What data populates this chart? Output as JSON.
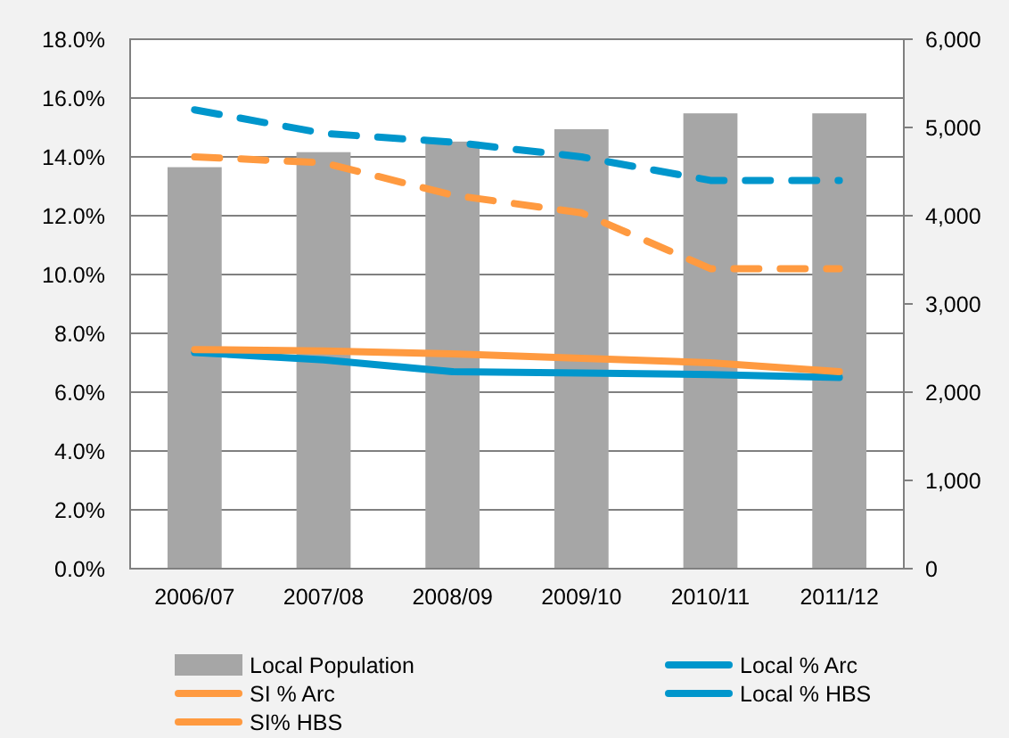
{
  "chart_data": {
    "type": "bar",
    "categories": [
      "2006/07",
      "2007/08",
      "2008/09",
      "2009/10",
      "2010/11",
      "2011/12"
    ],
    "series": [
      {
        "name": "Local Population",
        "axis": "y2",
        "color": "#a6a6a6",
        "values": [
          4550,
          4720,
          4840,
          4980,
          5160,
          5160
        ]
      },
      {
        "name": "Local % Arc",
        "type": "line",
        "color": "#0096cc",
        "line_style": "solid",
        "values": [
          7.35,
          7.1,
          6.7,
          6.65,
          6.6,
          6.5
        ]
      },
      {
        "name": "SI % Arc",
        "type": "line",
        "color": "#ff9a40",
        "line_style": "solid",
        "values": [
          7.45,
          7.4,
          7.3,
          7.15,
          7.0,
          6.7
        ]
      },
      {
        "name": "Local % HBS",
        "type": "line",
        "color": "#0096cc",
        "line_style": "dashed",
        "values": [
          15.6,
          14.8,
          14.5,
          14.0,
          13.2,
          13.2
        ]
      },
      {
        "name": "SI% HBS",
        "type": "line",
        "color": "#ff9a40",
        "line_style": "dashed",
        "values": [
          14.0,
          13.8,
          12.7,
          12.1,
          10.2,
          10.2
        ]
      }
    ],
    "ylim": [
      0,
      18
    ],
    "yticks": [
      {
        "value": 0,
        "label": "0.0%"
      },
      {
        "value": 2,
        "label": "2.0%"
      },
      {
        "value": 4,
        "label": "4.0%"
      },
      {
        "value": 6,
        "label": "6.0%"
      },
      {
        "value": 8,
        "label": "8.0%"
      },
      {
        "value": 10,
        "label": "10.0%"
      },
      {
        "value": 12,
        "label": "12.0%"
      },
      {
        "value": 14,
        "label": "14.0%"
      },
      {
        "value": 16,
        "label": "16.0%"
      },
      {
        "value": 18,
        "label": "18.0%"
      }
    ],
    "y2lim": [
      0,
      6000
    ],
    "y2ticks": [
      0,
      {
        "value": 1000,
        "label": "1,000"
      },
      {
        "value": 2000,
        "label": "2,000"
      },
      {
        "value": 3000,
        "label": "3,000"
      },
      {
        "value": 4000,
        "label": "4,000"
      },
      {
        "value": 5000,
        "label": "5,000"
      },
      {
        "value": 6000,
        "label": "6,000"
      }
    ],
    "grid": "y",
    "legend": "bottom"
  }
}
